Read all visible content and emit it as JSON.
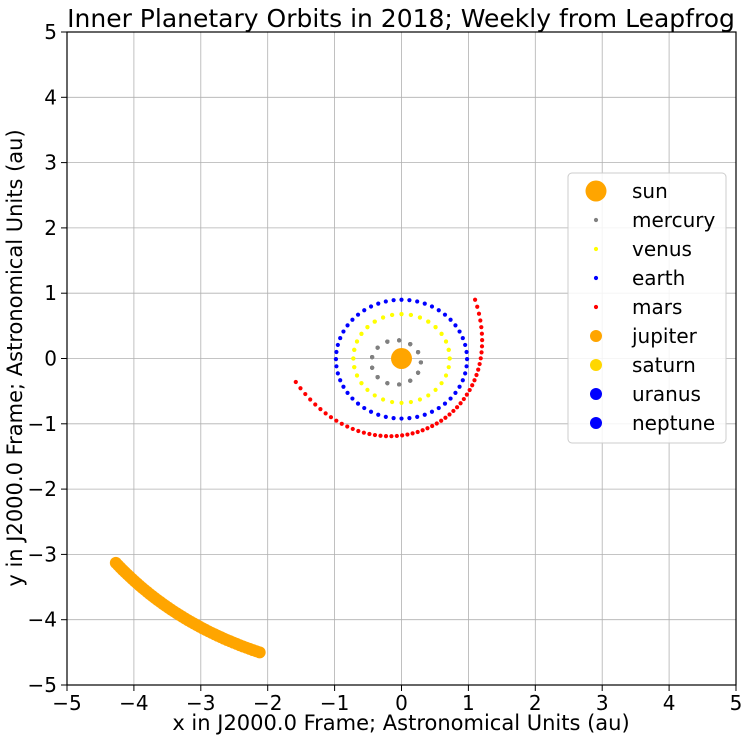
{
  "chart_data": {
    "type": "scatter",
    "title": "Inner Planetary Orbits in 2018; Weekly from Leapfrog",
    "xlabel": "x in J2000.0 Frame; Astronomical Units (au)",
    "ylabel": "y in J2000.0 Frame; Astronomical Units (au)",
    "xlim": [
      -5,
      5
    ],
    "ylim": [
      -5,
      5
    ],
    "xticks": [
      -5,
      -4,
      -3,
      -2,
      -1,
      0,
      1,
      2,
      3,
      4,
      5
    ],
    "yticks": [
      -5,
      -4,
      -3,
      -2,
      -1,
      0,
      1,
      2,
      3,
      4,
      5
    ],
    "xtick_labels": [
      "−5",
      "−4",
      "−3",
      "−2",
      "−1",
      "0",
      "1",
      "2",
      "3",
      "4",
      "5"
    ],
    "ytick_labels": [
      "−5",
      "−4",
      "−3",
      "−2",
      "−1",
      "0",
      "1",
      "2",
      "3",
      "4",
      "5"
    ],
    "grid": true,
    "legend_position": "center-right",
    "series": [
      {
        "name": "sun",
        "color": "#ffa500",
        "marker": "large",
        "orbit": {
          "type": "point",
          "x": 0,
          "y": 0
        }
      },
      {
        "name": "mercury",
        "color": "#808080",
        "marker": "small",
        "orbit": {
          "type": "ellipse",
          "cx": -0.08,
          "cy": -0.06,
          "rx": 0.37,
          "ry": 0.34,
          "start_deg": 0,
          "sweep_deg": 1440,
          "points": 52
        }
      },
      {
        "name": "venus",
        "color": "#ffff00",
        "marker": "small",
        "orbit": {
          "type": "ellipse",
          "cx": 0.0,
          "cy": 0.0,
          "rx": 0.72,
          "ry": 0.68,
          "start_deg": 0,
          "sweep_deg": 585,
          "points": 52
        }
      },
      {
        "name": "earth",
        "color": "#0000ff",
        "marker": "small",
        "orbit": {
          "type": "ellipse",
          "cx": 0.0,
          "cy": -0.01,
          "rx": 0.98,
          "ry": 0.91,
          "start_deg": 0,
          "sweep_deg": 360,
          "points": 52
        }
      },
      {
        "name": "mars",
        "color": "#ff0000",
        "marker": "small",
        "orbit": {
          "type": "arc",
          "from": [
            -1.58,
            -0.36
          ],
          "to": [
            1.1,
            0.9
          ],
          "via": [
            [
              -0.6,
              -1.31
            ],
            [
              1.4,
              0.0
            ]
          ],
          "points": 52
        }
      },
      {
        "name": "jupiter",
        "color": "#ffa500",
        "marker": "medium",
        "orbit": {
          "type": "path",
          "from": [
            -4.27,
            -3.13
          ],
          "to": [
            -2.12,
            -4.5
          ],
          "via": [
            [
              -3.3,
              -3.94
            ]
          ],
          "points": 52
        }
      },
      {
        "name": "saturn",
        "color": "#ffd700",
        "marker": "medium"
      },
      {
        "name": "uranus",
        "color": "#0000ff",
        "marker": "medium"
      },
      {
        "name": "neptune",
        "color": "#0000ff",
        "marker": "medium"
      }
    ]
  }
}
